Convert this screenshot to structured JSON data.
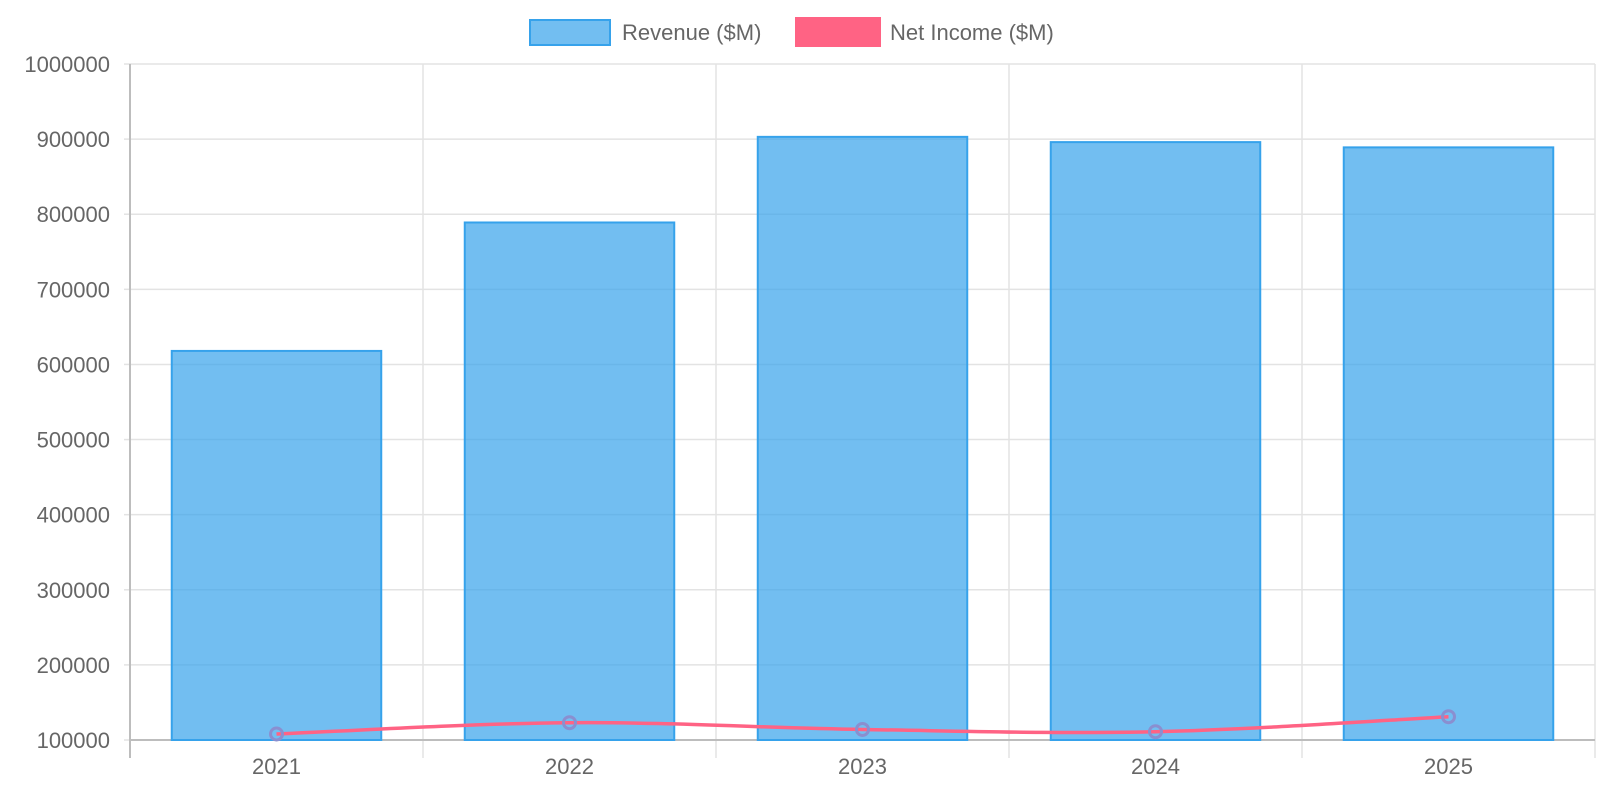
{
  "chart_data": {
    "type": "bar",
    "categories": [
      "2021",
      "2022",
      "2023",
      "2024",
      "2025"
    ],
    "series": [
      {
        "name": "Revenue ($M)",
        "type": "bar",
        "values": [
          618000,
          789000,
          903000,
          896000,
          889000
        ],
        "color": "#36a2eb",
        "fill": "rgba(54,162,235,0.7)"
      },
      {
        "name": "Net Income ($M)",
        "type": "line",
        "values": [
          108000,
          123000,
          114000,
          111000,
          131000
        ],
        "color": "#ff6384",
        "point_color": "#8a8fd0"
      }
    ],
    "ylim": [
      100000,
      1000000
    ],
    "yticks": [
      "100000",
      "200000",
      "300000",
      "400000",
      "500000",
      "600000",
      "700000",
      "800000",
      "900000",
      "1000000"
    ],
    "grid": true,
    "legend_position": "top"
  }
}
